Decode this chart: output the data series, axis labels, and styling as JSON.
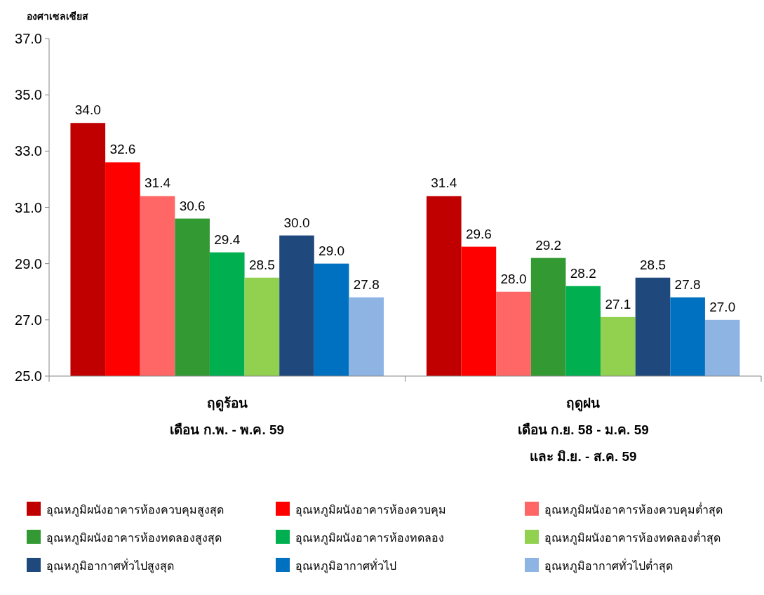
{
  "chart_data": {
    "type": "bar",
    "ylabel": "องศาเซลเซียส",
    "categories": [
      "ฤดูร้อน\nเดือน ก.พ. - พ.ค. 59",
      "ฤดูฝน\nเดือน ก.ย. 58 - ม.ค. 59\nและ มิ.ย. - ส.ค. 59"
    ],
    "series": [
      {
        "name": "อุณหภูมิผนังอาคารห้องควบคุมสูงสุด",
        "color": "#c00000",
        "values": [
          34.0,
          31.4
        ],
        "value_labels": [
          "34.0",
          "31.4"
        ]
      },
      {
        "name": "อุณหภูมิผนังอาคารห้องควบคุม",
        "color": "#ff0000",
        "values": [
          32.6,
          29.6
        ],
        "value_labels": [
          "32.6",
          "29.6"
        ]
      },
      {
        "name": "อุณหภูมิผนังอาคารห้องควบคุมต่ำสุด",
        "color": "#ff6666",
        "values": [
          31.4,
          28.0
        ],
        "value_labels": [
          "31.4",
          "28.0"
        ]
      },
      {
        "name": "อุณหภูมิผนังอาคารห้องทดลองสูงสุด",
        "color": "#339933",
        "values": [
          30.6,
          29.2
        ],
        "value_labels": [
          "30.6",
          "29.2"
        ]
      },
      {
        "name": "อุณหภูมิผนังอาคารห้องทดลอง",
        "color": "#00b050",
        "values": [
          29.4,
          28.2
        ],
        "value_labels": [
          "29.4",
          "28.2"
        ]
      },
      {
        "name": "อุณหภูมิผนังอาคารห้องทดลองต่ำสุด",
        "color": "#92d050",
        "values": [
          28.5,
          27.1
        ],
        "value_labels": [
          "28.5",
          "27.1"
        ]
      },
      {
        "name": "อุณหภูมิอากาศทั่วไปสูงสุด",
        "color": "#1f497d",
        "values": [
          30.0,
          28.5
        ],
        "value_labels": [
          "30.0",
          "28.5"
        ]
      },
      {
        "name": "อุณหภูมิอากาศทั่วไป",
        "color": "#0070c0",
        "values": [
          29.0,
          27.8
        ],
        "value_labels": [
          "29.0",
          "27.8"
        ]
      },
      {
        "name": "อุณหภูมิอากาศทั่วไปต่ำสุด",
        "color": "#8eb4e3",
        "values": [
          27.8,
          27.0
        ],
        "value_labels": [
          "27.8",
          "27.0"
        ]
      }
    ],
    "ylim": [
      25,
      37
    ],
    "yticks": [
      {
        "value": 25,
        "label": "25.0"
      },
      {
        "value": 27,
        "label": "27.0"
      },
      {
        "value": 29,
        "label": "29.0"
      },
      {
        "value": 31,
        "label": "31.0"
      },
      {
        "value": 33,
        "label": "33.0"
      },
      {
        "value": 35,
        "label": "35.0"
      },
      {
        "value": 37,
        "label": "37.0"
      }
    ],
    "grid": false,
    "legend": "bottom"
  }
}
